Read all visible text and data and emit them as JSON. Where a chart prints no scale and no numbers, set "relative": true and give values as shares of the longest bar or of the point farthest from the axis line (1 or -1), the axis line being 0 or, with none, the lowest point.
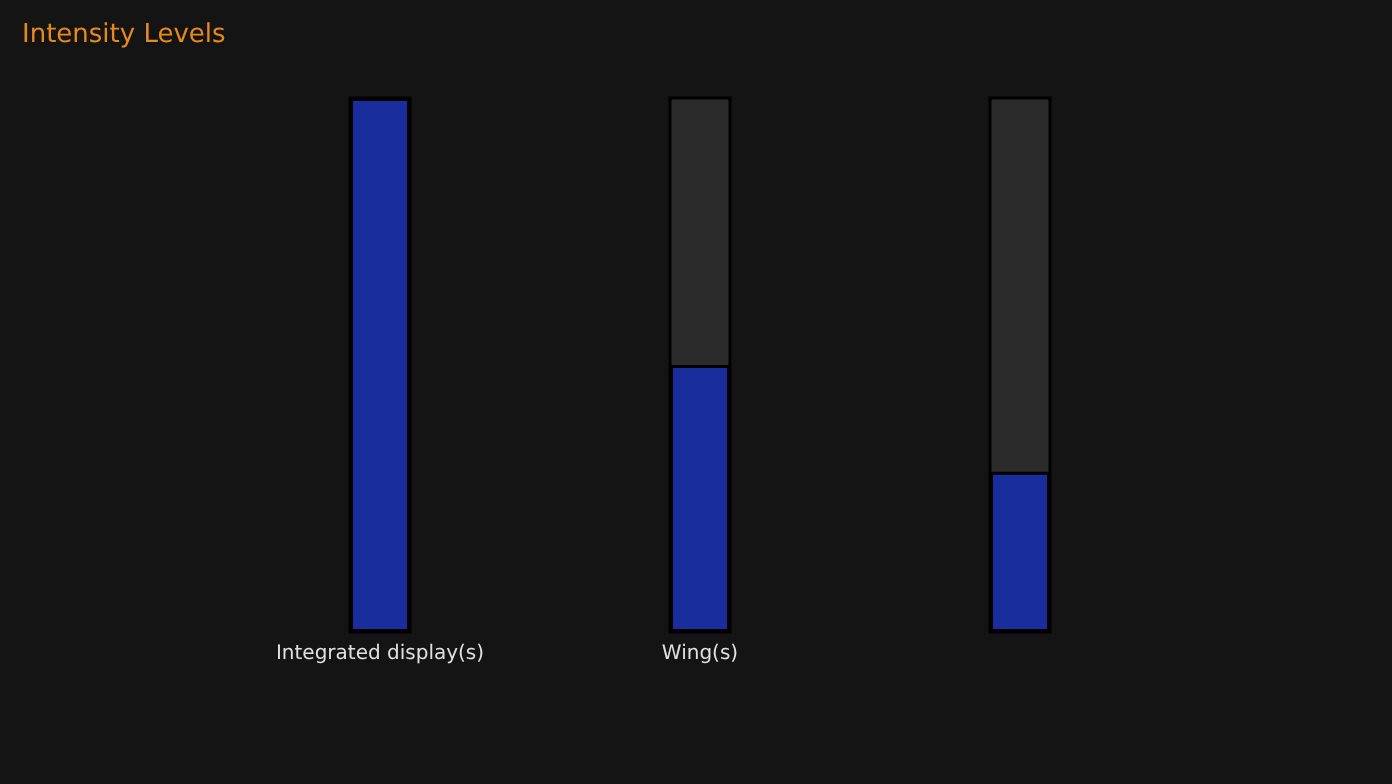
{
  "chart_data": {
    "type": "bar",
    "title": "Intensity Levels",
    "categories": [
      "Integrated display(s)",
      "Wing(s)",
      null
    ],
    "values": [
      1,
      0.5,
      0.3
    ],
    "color": "#1a2d9c",
    "relative": true
  }
}
